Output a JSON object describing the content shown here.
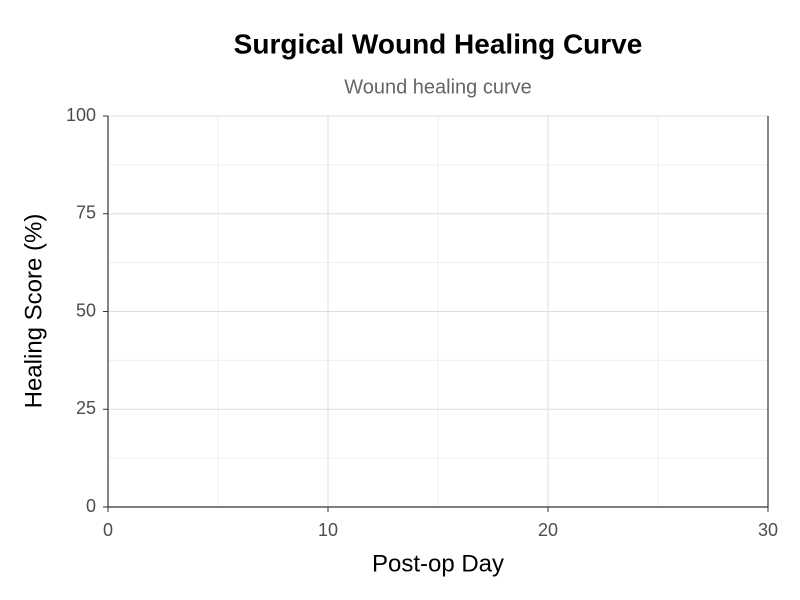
{
  "chart_data": {
    "type": "line",
    "title": "Surgical Wound Healing Curve",
    "subtitle": "Wound healing curve",
    "xlabel": "Post-op Day",
    "ylabel": "Healing Score (%)",
    "xlim": [
      0,
      30
    ],
    "xticks": [
      0,
      10,
      20,
      30
    ],
    "ylim": [
      0,
      100
    ],
    "yticks": [
      0,
      25,
      50,
      75,
      100
    ],
    "grid": true
  }
}
